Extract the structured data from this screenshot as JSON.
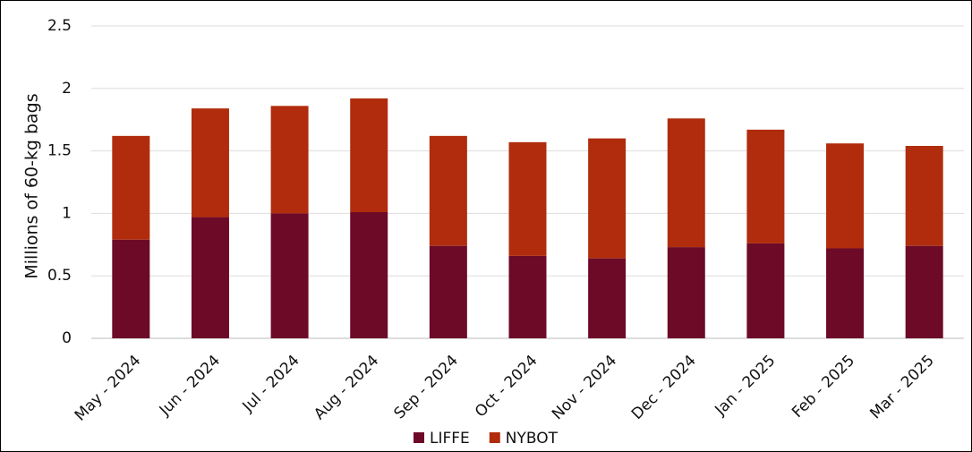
{
  "chart_data": {
    "type": "stacked_bar",
    "y_label": "Millions of 60-kg bags",
    "categories": [
      "May - 2024",
      "Jun - 2024",
      "Jul - 2024",
      "Aug - 2024",
      "Sep - 2024",
      "Oct - 2024",
      "Nov - 2024",
      "Dec - 2024",
      "Jan - 2025",
      "Feb - 2025",
      "Mar - 2025"
    ],
    "series": [
      {
        "name": "LIFFE",
        "color": "#6d0a28",
        "values": [
          0.79,
          0.97,
          1.0,
          1.01,
          0.74,
          0.66,
          0.64,
          0.73,
          0.76,
          0.72,
          0.74
        ]
      },
      {
        "name": "NYBOT",
        "color": "#b02c0c",
        "values": [
          0.83,
          0.87,
          0.86,
          0.91,
          0.88,
          0.91,
          0.96,
          1.03,
          0.91,
          0.84,
          0.8
        ]
      }
    ],
    "ylim": [
      0,
      2.5
    ],
    "yticks": [
      0,
      0.5,
      1,
      1.5,
      2,
      2.5
    ],
    "grid": true,
    "legend": "bottom"
  }
}
